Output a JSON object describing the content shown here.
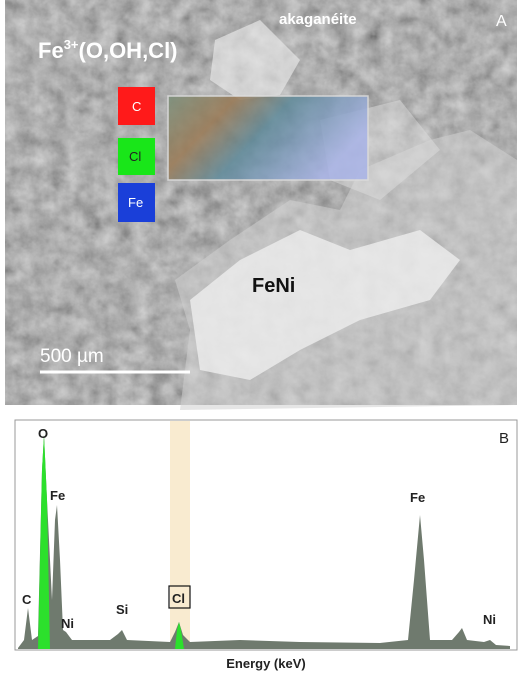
{
  "panel_a": {
    "title": "akaganéite",
    "panel_label": "A",
    "formula": {
      "base": "Fe",
      "superscript": "3+",
      "rest": "(O,OH,Cl)"
    },
    "legend": [
      "C",
      "Cl",
      "Fe"
    ],
    "region_label": "FeNi",
    "scale_bar": "500 µm"
  },
  "panel_b": {
    "panel_label": "B",
    "x_label": "Energy (keV)",
    "peak_labels": [
      "O",
      "Fe",
      "C",
      "Ni",
      "Si",
      "Cl",
      "Fe",
      "Ni"
    ]
  }
}
